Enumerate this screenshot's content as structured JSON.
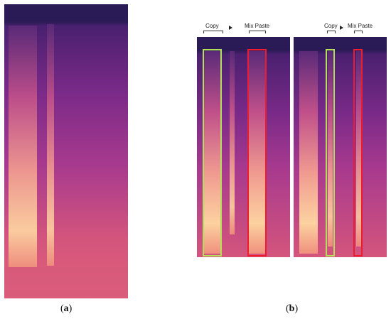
{
  "panel_a": {
    "caption_prefix": "(",
    "caption_letter": "a",
    "caption_suffix": ")"
  },
  "panel_b": {
    "caption_prefix": "(",
    "caption_letter": "b",
    "caption_suffix": ")",
    "left": {
      "copy_label": "Copy",
      "paste_label": "Mix Paste"
    },
    "right": {
      "copy_label": "Copy",
      "paste_label": "Mix Paste"
    }
  },
  "colors": {
    "copy_box": "#b3e05a",
    "paste_box": "#ee1c2e",
    "spectrogram_top": "#2e1b5c",
    "spectrogram_mid": "#8a2c8a",
    "spectrogram_low": "#e8647a",
    "spectrogram_bright": "#fcd2a0"
  }
}
